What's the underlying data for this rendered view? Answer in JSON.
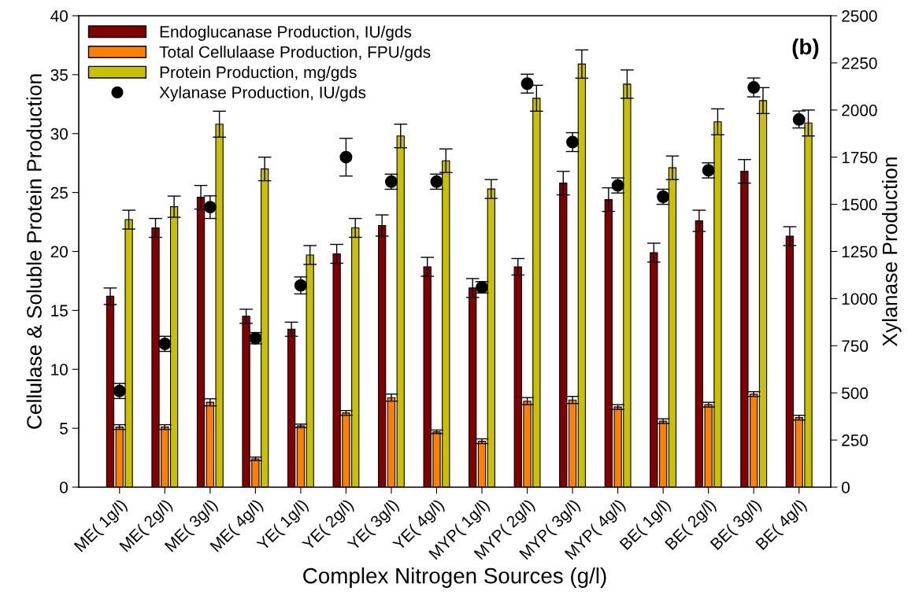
{
  "chart_data": {
    "type": "bar",
    "xlabel": "Complex Nitrogen Sources (g/l)",
    "ylabel": "Cellulase & Soluble Protein Production",
    "y2label": "Xylanase Production",
    "annotations": [
      "(b)"
    ],
    "categories": [
      "ME( 1g/l)",
      "ME( 2g/l)",
      "ME( 3g/l)",
      "ME( 4g/l)",
      "YE( 1g/l)",
      "YE( 2g/l)",
      "YE( 3g/l)",
      "YE( 4g/l)",
      "MYP( 1g/l)",
      "MYP( 2g/l)",
      "MYP( 3g/l)",
      "MYP( 4g/l)",
      "BE( 1g/l)",
      "BE( 2g/l)",
      "BE( 3g/l)",
      "BE( 4g/l)"
    ],
    "series": [
      {
        "name": "Endoglucanase Production, IU/gds",
        "color": "#800000",
        "values": [
          16.2,
          22.0,
          24.6,
          14.5,
          13.4,
          19.8,
          22.2,
          18.7,
          16.9,
          18.7,
          25.8,
          24.4,
          19.9,
          22.6,
          26.8,
          21.3
        ],
        "errors": [
          0.7,
          0.8,
          1.0,
          0.6,
          0.6,
          0.8,
          0.9,
          0.8,
          0.8,
          0.7,
          1.0,
          1.0,
          0.8,
          0.9,
          1.0,
          0.8
        ]
      },
      {
        "name": "Total Cellulaase Production, FPU/gds",
        "color": "#ff8000",
        "values": [
          5.1,
          5.1,
          7.2,
          2.4,
          5.2,
          6.3,
          7.6,
          4.7,
          3.9,
          7.3,
          7.4,
          6.8,
          5.6,
          7.0,
          7.9,
          5.9
        ],
        "errors": [
          0.2,
          0.2,
          0.3,
          0.15,
          0.15,
          0.2,
          0.3,
          0.15,
          0.2,
          0.3,
          0.3,
          0.2,
          0.2,
          0.2,
          0.2,
          0.2
        ]
      },
      {
        "name": "Protein Production, mg/gds",
        "color": "#c8c000",
        "values": [
          22.7,
          23.8,
          30.8,
          27.0,
          19.7,
          22.0,
          29.8,
          27.7,
          25.3,
          33.0,
          35.9,
          34.2,
          27.1,
          31.0,
          32.8,
          30.9
        ],
        "errors": [
          0.8,
          0.9,
          1.1,
          1.0,
          0.8,
          0.8,
          1.0,
          1.0,
          0.8,
          1.1,
          1.2,
          1.2,
          1.0,
          1.1,
          1.1,
          1.1
        ]
      },
      {
        "name": "Xylanase Production, IU/gds",
        "type": "scatter",
        "axis": "y2",
        "color": "#000000",
        "marker": "circle",
        "values": [
          510,
          760,
          1485,
          790,
          1070,
          1750,
          1620,
          1620,
          1060,
          2140,
          1830,
          1600,
          1540,
          1680,
          2120,
          1950
        ],
        "errors": [
          40,
          40,
          60,
          30,
          45,
          100,
          40,
          40,
          30,
          50,
          50,
          40,
          40,
          40,
          50,
          45
        ]
      }
    ],
    "ylim": [
      0,
      40
    ],
    "yticks": [
      0,
      5,
      10,
      15,
      20,
      25,
      30,
      35,
      40
    ],
    "y2lim": [
      0,
      2500
    ],
    "y2ticks": [
      0,
      250,
      500,
      750,
      1000,
      1250,
      1500,
      1750,
      2000,
      2250,
      2500
    ],
    "legend": "top left",
    "grid": false
  }
}
